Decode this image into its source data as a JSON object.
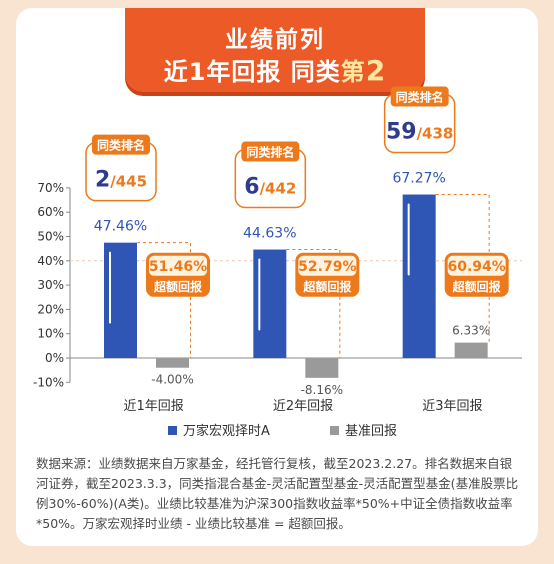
{
  "banner": {
    "line1": "业绩前列",
    "line2_part1": "近1年回报 同类",
    "line2_part2": "第",
    "line2_part3": "2"
  },
  "note": "数据来源：业绩数据来自万家基金，经托管行复核，截至2023.2.27。排名数据来自银河证券，截至2023.3.3，同类指混合基金-灵活配置型基金-灵活配置型基金(基准股票比例30%-60%)(A类)。业绩比较基准为沪深300指数收益率*50%+中证全债指数收益率*50%。万家宏观择时业绩 - 业绩比较基准 = 超额回报。",
  "colors": {
    "fund": "#2f55b5",
    "benchmark": "#9a9a9a",
    "accent": "#ec7a1c",
    "rank_text": "#2f3c8e",
    "bg": "#f9e4d2"
  },
  "chart_data": {
    "type": "bar",
    "categories": [
      "近1年回报",
      "近2年回报",
      "近3年回报"
    ],
    "series": [
      {
        "name": "万家宏观择时A",
        "values": [
          47.46,
          44.63,
          67.27
        ],
        "labels": [
          "47.46%",
          "44.63%",
          "67.27%"
        ]
      },
      {
        "name": "基准回报",
        "values": [
          -4.0,
          -8.16,
          6.33
        ],
        "labels": [
          "-4.00%",
          "-8.16%",
          "6.33%"
        ]
      }
    ],
    "excess": [
      {
        "label": "超额回报",
        "value": "51.46%"
      },
      {
        "label": "超额回报",
        "value": "52.79%"
      },
      {
        "label": "超额回报",
        "value": "60.94%"
      }
    ],
    "ranks": [
      {
        "title": "同类排名",
        "rank": "2",
        "total": "/445"
      },
      {
        "title": "同类排名",
        "rank": "6",
        "total": "/442"
      },
      {
        "title": "同类排名",
        "rank": "59",
        "total": "/438"
      }
    ],
    "yticks": [
      "70%",
      "60%",
      "50%",
      "40%",
      "30%",
      "20%",
      "10%",
      "0%",
      "-10%"
    ],
    "ylim": [
      -10,
      70
    ],
    "legend_position": "bottom"
  }
}
